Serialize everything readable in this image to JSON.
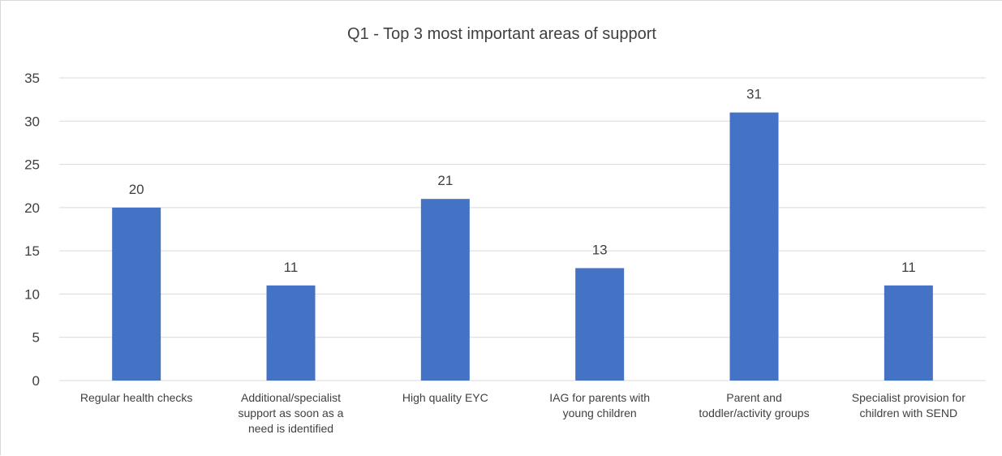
{
  "chart_data": {
    "type": "bar",
    "title": "Q1 - Top 3 most important areas of support",
    "categories": [
      [
        "Regular health checks"
      ],
      [
        "Additional/specialist",
        "support as soon as a",
        "need is identified"
      ],
      [
        "High quality EYC"
      ],
      [
        "IAG for parents with",
        "young children"
      ],
      [
        "Parent and",
        "toddler/activity groups"
      ],
      [
        "Specialist provision for",
        "children with SEND"
      ]
    ],
    "values": [
      20,
      11,
      21,
      13,
      31,
      11
    ],
    "ylim": [
      0,
      35
    ],
    "yticks": [
      0,
      5,
      10,
      15,
      20,
      25,
      30,
      35
    ],
    "grid": true,
    "data_labels": true,
    "legend": "none",
    "bar_color": "#4472c4",
    "grid_color": "#d9d9d9",
    "text_color": "#404040"
  }
}
